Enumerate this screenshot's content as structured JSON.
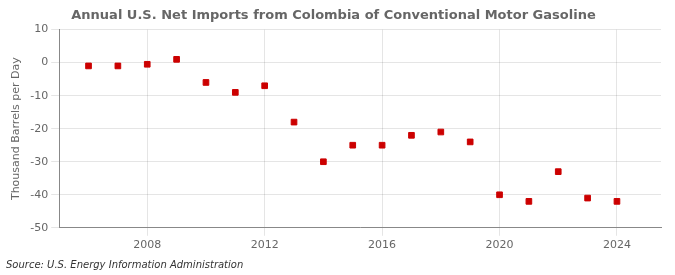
{
  "chart_data": {
    "type": "scatter",
    "title": "Annual U.S. Net Imports from Colombia of Conventional Motor Gasoline",
    "ylabel": "Thousand Barrels per Day",
    "annotation": "Source: U.S. Energy Information Administration",
    "x": [
      2006,
      2007,
      2008,
      2009,
      2010,
      2011,
      2012,
      2013,
      2014,
      2015,
      2016,
      2017,
      2018,
      2019,
      2020,
      2021,
      2022,
      2023,
      2024
    ],
    "values": [
      -1,
      -1,
      -0.5,
      1.0,
      -6,
      -9,
      -7,
      -18,
      -30,
      -25,
      -25,
      -22,
      -21,
      -24,
      -40,
      -42,
      -33,
      -41,
      -42
    ],
    "color": "#cc0000",
    "marker": "square",
    "xlim": [
      2005.0,
      2025.5
    ],
    "ylim": [
      -50,
      10
    ],
    "xticks": [
      2008,
      2012,
      2016,
      2020,
      2024
    ],
    "yticks": [
      -50,
      -40,
      -30,
      -20,
      -10,
      0,
      10
    ],
    "grid": true
  }
}
